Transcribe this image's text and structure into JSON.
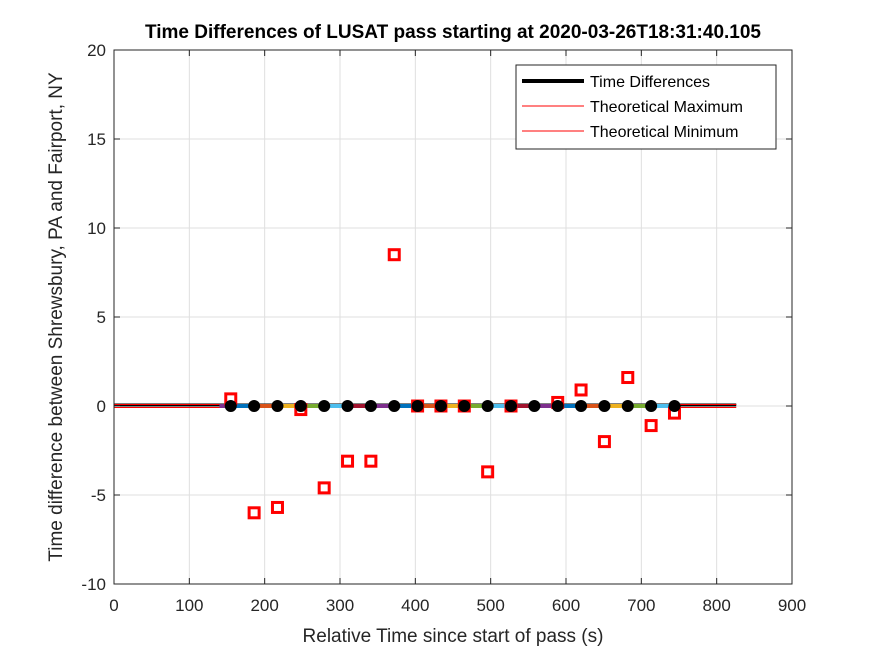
{
  "chart_data": {
    "type": "scatter",
    "title": "Time Differences of LUSAT pass starting at 2020-03-26T18:31:40.105",
    "xlabel": "Relative Time since start of pass (s)",
    "ylabel": "Time difference between Shrewsbury, PA and Fairport, NY",
    "xlim": [
      0,
      900
    ],
    "ylim": [
      -10,
      20
    ],
    "xticks": [
      "0",
      "100",
      "200",
      "300",
      "400",
      "500",
      "600",
      "700",
      "800",
      "900"
    ],
    "yticks": [
      "-10",
      "-5",
      "0",
      "5",
      "10",
      "15",
      "20"
    ],
    "grid": true,
    "legend_position": "top-right",
    "legend": [
      "Time Differences",
      "Theoretical Maximum",
      "Theoretical Minimum"
    ],
    "series": [
      {
        "name": "Time Differences",
        "color": "#000000",
        "marker": "circle",
        "x": [
          155,
          186,
          217,
          248,
          279,
          310,
          341,
          372,
          403,
          434,
          465,
          496,
          527,
          558,
          589,
          620,
          651,
          682,
          713,
          744
        ],
        "y": [
          0,
          0,
          0,
          0,
          0,
          0,
          0,
          0,
          0,
          0,
          0,
          0,
          0,
          0,
          0,
          0,
          0,
          0,
          0,
          0
        ]
      },
      {
        "name": "Theoretical Maximum",
        "color": "#ff0000",
        "x": [
          0,
          826
        ],
        "y": [
          0.02,
          0.02
        ]
      },
      {
        "name": "Theoretical Minimum",
        "color": "#ff0000",
        "x": [
          0,
          826
        ],
        "y": [
          -0.02,
          -0.02
        ]
      },
      {
        "color": "#ff0000",
        "marker": "square",
        "x": [
          155,
          186,
          217,
          248,
          279,
          310,
          341,
          372,
          403,
          434,
          465,
          496,
          527,
          589,
          620,
          651,
          682,
          713,
          744
        ],
        "y": [
          0.4,
          -6.0,
          -5.7,
          -0.2,
          -4.6,
          -3.1,
          -3.1,
          8.5,
          0,
          0,
          0,
          -3.7,
          0,
          0.2,
          0.9,
          -2.0,
          1.6,
          -1.1,
          -0.4
        ]
      }
    ],
    "colored_segments": {
      "colors": [
        "#7e2f8e",
        "#0072bd",
        "#d95319",
        "#edb120",
        "#77ac30",
        "#4dbeee",
        "#a2142f"
      ]
    }
  }
}
